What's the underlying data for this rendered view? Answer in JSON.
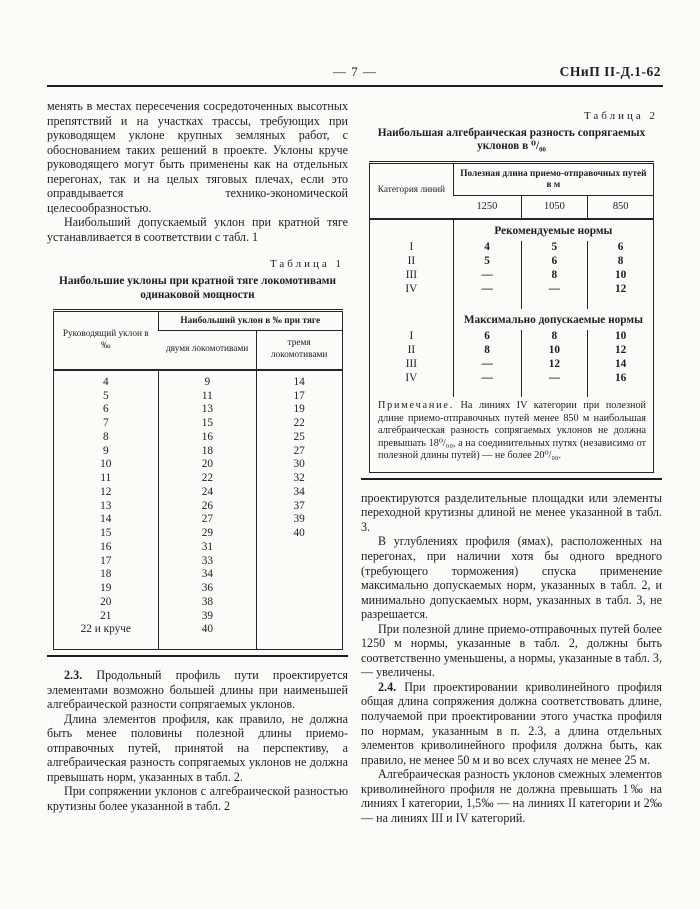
{
  "colors": {
    "paper": "#fbfbf8",
    "ink": "#1d1d1d"
  },
  "header": {
    "page_number": "— 7 —",
    "doc_code": "СНиП II-Д.1-62"
  },
  "left_column": {
    "para1": "менять в местах пересечения сосредоточенных высотных препятствий и на участках трассы, требующих при руководящем уклоне крупных земляных работ, с обоснованием таких решений в проекте. Уклоны круче руководящего могут быть применены как на отдельных перегонах, так и на целых тяговых плечах, если это оправдывается технико-экономической целесообразностью.",
    "para2": "Наибольший допускаемый уклон при кратной тяге устанавливается в соответствии с табл. 1",
    "para_23_num": "2.3.",
    "para_23": " Продольный профиль пути проектируется элементами возможно большей длины при наименьшей алгебраической разности сопрягаемых уклонов.",
    "para4": "Длина элементов профиля, как правило, не должна быть менее половины полезной длины приемо-отправочных путей, принятой на перспективу, а алгебраическая разность сопрягаемых уклонов не должна превышать норм, указанных в табл. 2.",
    "para5": "При сопряжении уклонов с алгебраической разностью крутизны более указанной в табл. 2"
  },
  "table1": {
    "label": "Таблица 1",
    "title": "Наибольшие уклоны при кратной тяге локомотивами одинаковой мощности",
    "col1_header": "Руководящий уклон в ‰",
    "group_header": "Наибольший уклон в ‰ при тяге",
    "sub_headers": {
      "two": "двумя локомотивами",
      "three": "тремя локомотивами"
    },
    "rows": [
      [
        "4",
        "9",
        "14"
      ],
      [
        "5",
        "11",
        "17"
      ],
      [
        "6",
        "13",
        "19"
      ],
      [
        "7",
        "15",
        "22"
      ],
      [
        "8",
        "16",
        "25"
      ],
      [
        "9",
        "18",
        "27"
      ],
      [
        "10",
        "20",
        "30"
      ],
      [
        "11",
        "22",
        "32"
      ],
      [
        "12",
        "24",
        "34"
      ],
      [
        "13",
        "26",
        "37"
      ],
      [
        "14",
        "27",
        "39"
      ],
      [
        "15",
        "29",
        "40"
      ],
      [
        "16",
        "31",
        ""
      ],
      [
        "17",
        "33",
        ""
      ],
      [
        "18",
        "34",
        ""
      ],
      [
        "19",
        "36",
        ""
      ],
      [
        "20",
        "38",
        ""
      ],
      [
        "21",
        "39",
        ""
      ],
      [
        "22 и круче",
        "40",
        ""
      ]
    ]
  },
  "table2": {
    "label": "Таблица 2",
    "title": "Наибольшая алгебраическая разность сопрягаемых уклонов в ⁰/₀₀",
    "col1_header": "Категория линий",
    "group_header": "Полезная длина приемо-отправочных путей в м",
    "sub_headers": {
      "c1": "1250",
      "c2": "1050",
      "c3": "850"
    },
    "section1_title": "Рекомендуемые нормы",
    "section1_rows": [
      [
        "I",
        "4",
        "5",
        "6"
      ],
      [
        "II",
        "5",
        "6",
        "8"
      ],
      [
        "III",
        "—",
        "8",
        "10"
      ],
      [
        "IV",
        "—",
        "—",
        "12"
      ]
    ],
    "section2_title": "Максимально допускаемые нормы",
    "section2_rows": [
      [
        "I",
        "6",
        "8",
        "10"
      ],
      [
        "II",
        "8",
        "10",
        "12"
      ],
      [
        "III",
        "—",
        "12",
        "14"
      ],
      [
        "IV",
        "—",
        "—",
        "16"
      ]
    ],
    "note_label": "Примечание.",
    "note_text": " На линиях IV категории при полезной длине приемо-отправочных путей менее 850 м наибольшая алгебраическая разность сопрягаемых уклонов не должна превышать 18⁰/₀₀, а на соединительных путях (независимо от полезной длины путей) — не более 20⁰/₀₀."
  },
  "right_column": {
    "para1": "проектируются разделительные площадки или элементы переходной крутизны длиной не менее указанной в табл. 3.",
    "para2": "В углублениях профиля (ямах), расположенных на перегонах, при наличии хотя бы одного вредного (требующего торможения) спуска применение максимально допускаемых норм, указанных в табл. 2, и минимально допускаемых норм, указанных в табл. 3, не разрешается.",
    "para3": "При полезной длине приемо-отправочных путей более 1250 м нормы, указанные в табл. 2, должны быть соответственно уменьшены, а нормы, указанные в табл. 3, — увеличены.",
    "para_24_num": "2.4.",
    "para_24": " При проектировании криволинейного профиля общая длина сопряжения должна соответствовать длине, получаемой при проектировании этого участка профиля по нормам, указанным в п. 2.3, а длина отдельных элементов криволинейного профиля должна быть, как правило, не менее 50 м и во всех случаях не менее 25 м.",
    "para5": "Алгебраическая разность уклонов смежных элементов криволинейного профиля не должна превышать 1‰ на линиях I категории, 1,5‰ — на линиях II категории и 2‰ — на линиях III и IV категорий."
  }
}
